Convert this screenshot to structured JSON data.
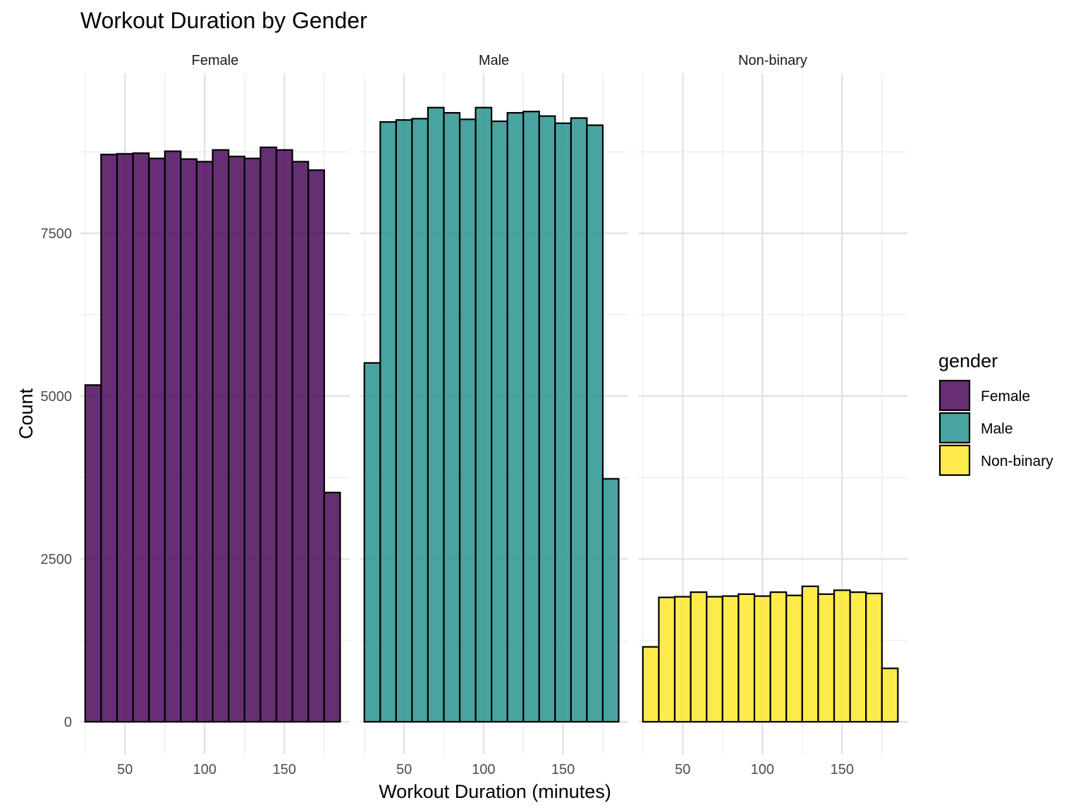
{
  "chart_data": {
    "type": "bar",
    "subtype": "faceted-histogram",
    "title": "Workout Duration by Gender",
    "xlabel": "Workout Duration (minutes)",
    "ylabel": "Count",
    "ylim": [
      0,
      9500
    ],
    "xlim": [
      22,
      191
    ],
    "y_ticks": [
      0,
      2500,
      5000,
      7500
    ],
    "x_ticks": [
      50,
      100,
      150
    ],
    "grid": true,
    "bin_width": 10,
    "bin_starts": [
      25,
      35,
      45,
      55,
      65,
      75,
      85,
      95,
      105,
      115,
      125,
      135,
      145,
      155,
      165,
      175
    ],
    "legend": {
      "title": "gender",
      "position": "right"
    },
    "facets": [
      {
        "name": "Female",
        "color": "#440154",
        "values": [
          5170,
          8710,
          8720,
          8730,
          8650,
          8760,
          8640,
          8600,
          8780,
          8680,
          8650,
          8820,
          8780,
          8600,
          8470,
          3520
        ]
      },
      {
        "name": "Male",
        "color": "#21908C",
        "values": [
          5510,
          9210,
          9240,
          9260,
          9430,
          9350,
          9250,
          9430,
          9220,
          9350,
          9370,
          9300,
          9190,
          9270,
          9160,
          3730
        ]
      },
      {
        "name": "Non-binary",
        "color": "#FDE725",
        "values": [
          1150,
          1910,
          1920,
          1990,
          1920,
          1930,
          1960,
          1930,
          1990,
          1940,
          2080,
          1960,
          2020,
          1990,
          1970,
          820
        ]
      }
    ]
  }
}
